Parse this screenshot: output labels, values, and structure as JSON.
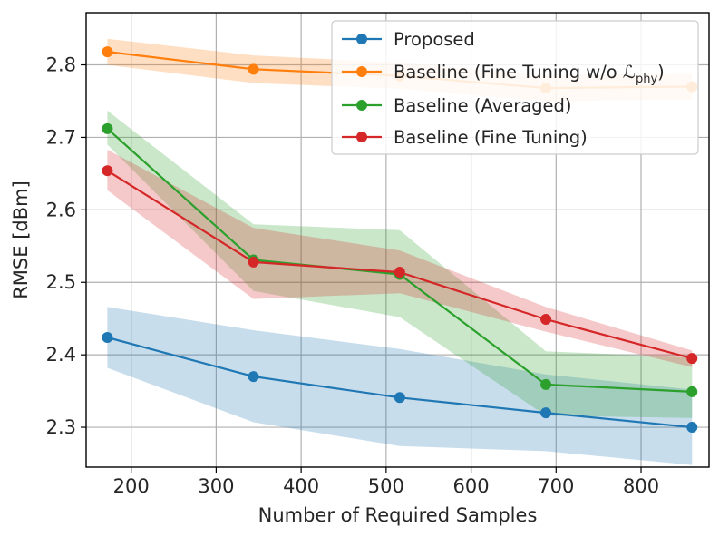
{
  "chart_data": {
    "type": "line",
    "title": "",
    "xlabel": "Number of Required Samples",
    "ylabel": "RMSE [dBm]",
    "xlim": [
      147,
      880
    ],
    "ylim": [
      2.245,
      2.872
    ],
    "x_ticks": [
      200,
      300,
      400,
      500,
      600,
      700,
      800
    ],
    "y_ticks": [
      2.3,
      2.4,
      2.5,
      2.6,
      2.7,
      2.8
    ],
    "x_tick_labels": [
      "200",
      "300",
      "400",
      "500",
      "600",
      "700",
      "800"
    ],
    "y_tick_labels": [
      "2.3",
      "2.4",
      "2.5",
      "2.6",
      "2.7",
      "2.8"
    ],
    "grid": true,
    "legend_position": "top-right",
    "x": [
      172,
      344,
      516,
      688,
      860
    ],
    "series": [
      {
        "name": "Proposed",
        "legend_main": "Proposed",
        "legend_sub": "",
        "legend_tail": "",
        "color": "#1f77b4",
        "values": [
          2.424,
          2.37,
          2.341,
          2.32,
          2.3
        ],
        "lower": [
          2.382,
          2.307,
          2.274,
          2.267,
          2.248
        ],
        "upper": [
          2.466,
          2.434,
          2.408,
          2.373,
          2.352
        ]
      },
      {
        "name": "Baseline (Fine Tuning w/o ℒphy)",
        "legend_main": "Baseline (Fine Tuning w/o ℒ",
        "legend_sub": "phy",
        "legend_tail": ")",
        "color": "#ff7f0e",
        "values": [
          2.818,
          2.794,
          2.785,
          2.768,
          2.77
        ],
        "lower": [
          2.8,
          2.775,
          2.767,
          2.75,
          2.752
        ],
        "upper": [
          2.836,
          2.813,
          2.803,
          2.786,
          2.788
        ]
      },
      {
        "name": "Baseline (Averaged)",
        "legend_main": "Baseline (Averaged)",
        "legend_sub": "",
        "legend_tail": "",
        "color": "#2ca02c",
        "values": [
          2.712,
          2.531,
          2.511,
          2.359,
          2.349
        ],
        "lower": [
          2.69,
          2.488,
          2.452,
          2.316,
          2.313
        ],
        "upper": [
          2.737,
          2.58,
          2.572,
          2.405,
          2.396
        ]
      },
      {
        "name": "Baseline (Fine Tuning)",
        "legend_main": "Baseline (Fine Tuning)",
        "legend_sub": "",
        "legend_tail": "",
        "color": "#d62728",
        "values": [
          2.654,
          2.528,
          2.514,
          2.449,
          2.395
        ],
        "lower": [
          2.627,
          2.477,
          2.485,
          2.432,
          2.383
        ],
        "upper": [
          2.683,
          2.575,
          2.544,
          2.466,
          2.406
        ]
      }
    ]
  }
}
